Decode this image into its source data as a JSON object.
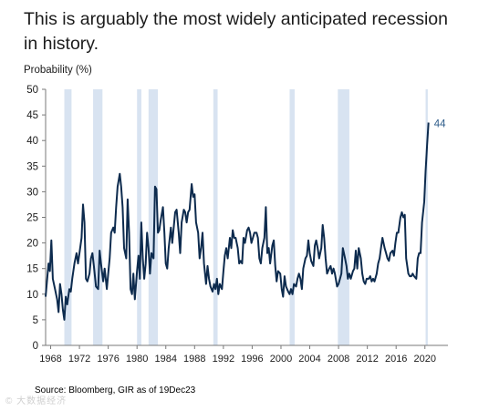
{
  "title_lines": [
    "This is arguably the most widely anticipated recession",
    "in history."
  ],
  "ylabel": "Probability (%)",
  "source": "Source: Bloomberg, GIR as of 19Dec23",
  "watermark": "© 大数据经济",
  "colors": {
    "line": "#0d2b4e",
    "recession": "#d8e3f1",
    "axis": "#7a7a7a",
    "label": "#2e5c8a",
    "text": "#1c1c1c"
  },
  "chart_data": {
    "type": "line",
    "title": "This is arguably the most widely anticipated recession in history.",
    "xlabel": "",
    "ylabel": "Probability (%)",
    "xlim": [
      1967.3,
      2023.2
    ],
    "ylim": [
      0,
      50
    ],
    "yticks": [
      0,
      5,
      10,
      15,
      20,
      25,
      30,
      35,
      40,
      45,
      50
    ],
    "xticks": [
      1968,
      1972,
      1976,
      1980,
      1984,
      1988,
      1992,
      1996,
      2000,
      2004,
      2008,
      2012,
      2016,
      2020
    ],
    "grid": false,
    "end_label": "44",
    "recessions": [
      [
        1969.9,
        1970.9
      ],
      [
        1973.9,
        1975.2
      ],
      [
        1980.0,
        1980.6
      ],
      [
        1981.6,
        1982.9
      ],
      [
        1990.6,
        1991.2
      ],
      [
        2001.2,
        2001.9
      ],
      [
        2007.9,
        2009.5
      ],
      [
        2020.1,
        2020.4
      ]
    ],
    "series": [
      {
        "values": [
          [
            1967.3,
            9.5
          ],
          [
            1967.7,
            16
          ],
          [
            1967.9,
            14.5
          ],
          [
            1968.1,
            20.5
          ],
          [
            1968.3,
            13
          ],
          [
            1968.6,
            11
          ],
          [
            1968.9,
            9
          ],
          [
            1969.1,
            6.5
          ],
          [
            1969.3,
            12
          ],
          [
            1969.5,
            10
          ],
          [
            1969.7,
            7
          ],
          [
            1969.9,
            5
          ],
          [
            1970.1,
            9.5
          ],
          [
            1970.3,
            8
          ],
          [
            1970.6,
            11
          ],
          [
            1970.8,
            10.5
          ],
          [
            1971.0,
            13
          ],
          [
            1971.3,
            16
          ],
          [
            1971.6,
            18
          ],
          [
            1971.8,
            16
          ],
          [
            1972.0,
            18
          ],
          [
            1972.3,
            21
          ],
          [
            1972.5,
            27.5
          ],
          [
            1972.7,
            24
          ],
          [
            1972.9,
            13
          ],
          [
            1973.1,
            12.5
          ],
          [
            1973.4,
            14
          ],
          [
            1973.6,
            17
          ],
          [
            1973.8,
            18
          ],
          [
            1974.0,
            15.5
          ],
          [
            1974.3,
            11.5
          ],
          [
            1974.6,
            11
          ],
          [
            1974.8,
            18.5
          ],
          [
            1975.0,
            16
          ],
          [
            1975.3,
            12.5
          ],
          [
            1975.5,
            15
          ],
          [
            1975.8,
            11
          ],
          [
            1976.0,
            14
          ],
          [
            1976.2,
            17
          ],
          [
            1976.4,
            22
          ],
          [
            1976.7,
            23
          ],
          [
            1976.9,
            22
          ],
          [
            1977.1,
            27
          ],
          [
            1977.3,
            31
          ],
          [
            1977.6,
            33.5
          ],
          [
            1977.8,
            31
          ],
          [
            1978.0,
            27
          ],
          [
            1978.2,
            19
          ],
          [
            1978.5,
            17
          ],
          [
            1978.7,
            28.5
          ],
          [
            1978.9,
            22
          ],
          [
            1979.1,
            11
          ],
          [
            1979.3,
            10
          ],
          [
            1979.5,
            14
          ],
          [
            1979.7,
            9
          ],
          [
            1980.0,
            14.5
          ],
          [
            1980.2,
            17.5
          ],
          [
            1980.4,
            13
          ],
          [
            1980.6,
            24
          ],
          [
            1980.8,
            17
          ],
          [
            1981.0,
            13
          ],
          [
            1981.2,
            16
          ],
          [
            1981.4,
            22
          ],
          [
            1981.6,
            19
          ],
          [
            1981.8,
            14
          ],
          [
            1982.0,
            18
          ],
          [
            1982.3,
            17
          ],
          [
            1982.5,
            31
          ],
          [
            1982.7,
            30.5
          ],
          [
            1982.9,
            22
          ],
          [
            1983.1,
            22.5
          ],
          [
            1983.3,
            24.5
          ],
          [
            1983.6,
            27
          ],
          [
            1983.8,
            22
          ],
          [
            1984.0,
            16
          ],
          [
            1984.2,
            15
          ],
          [
            1984.4,
            19
          ],
          [
            1984.7,
            23
          ],
          [
            1984.9,
            20
          ],
          [
            1985.1,
            23
          ],
          [
            1985.3,
            26
          ],
          [
            1985.5,
            26.5
          ],
          [
            1985.8,
            22
          ],
          [
            1986.0,
            18
          ],
          [
            1986.2,
            24
          ],
          [
            1986.5,
            26.5
          ],
          [
            1986.7,
            26
          ],
          [
            1986.9,
            24
          ],
          [
            1987.1,
            26
          ],
          [
            1987.3,
            26.5
          ],
          [
            1987.6,
            31.5
          ],
          [
            1987.8,
            29
          ],
          [
            1988.0,
            29.5
          ],
          [
            1988.2,
            24
          ],
          [
            1988.5,
            22
          ],
          [
            1988.7,
            17
          ],
          [
            1988.9,
            19
          ],
          [
            1989.1,
            22
          ],
          [
            1989.3,
            16
          ],
          [
            1989.6,
            12
          ],
          [
            1989.8,
            15.5
          ],
          [
            1990.0,
            13
          ],
          [
            1990.2,
            11.5
          ],
          [
            1990.5,
            10.5
          ],
          [
            1990.7,
            12
          ],
          [
            1990.9,
            11
          ],
          [
            1991.1,
            13
          ],
          [
            1991.3,
            10
          ],
          [
            1991.5,
            12
          ],
          [
            1991.8,
            11
          ],
          [
            1992.0,
            14.5
          ],
          [
            1992.2,
            17.5
          ],
          [
            1992.4,
            19
          ],
          [
            1992.6,
            17
          ],
          [
            1992.9,
            21
          ],
          [
            1993.1,
            19
          ],
          [
            1993.3,
            22.5
          ],
          [
            1993.5,
            21
          ],
          [
            1993.7,
            21
          ],
          [
            1994.0,
            19
          ],
          [
            1994.2,
            16
          ],
          [
            1994.4,
            16.5
          ],
          [
            1994.6,
            16
          ],
          [
            1994.8,
            21
          ],
          [
            1995.0,
            20
          ],
          [
            1995.3,
            22.5
          ],
          [
            1995.5,
            23
          ],
          [
            1995.7,
            22
          ],
          [
            1995.9,
            20
          ],
          [
            1996.1,
            21
          ],
          [
            1996.3,
            22
          ],
          [
            1996.6,
            22
          ],
          [
            1996.8,
            21
          ],
          [
            1997.0,
            17
          ],
          [
            1997.2,
            16
          ],
          [
            1997.4,
            19
          ],
          [
            1997.7,
            21
          ],
          [
            1997.9,
            27
          ],
          [
            1998.1,
            18
          ],
          [
            1998.3,
            19
          ],
          [
            1998.5,
            16
          ],
          [
            1998.8,
            19.5
          ],
          [
            1999.0,
            20.5
          ],
          [
            1999.2,
            15.5
          ],
          [
            1999.4,
            12.5
          ],
          [
            1999.6,
            14.5
          ],
          [
            1999.9,
            14
          ],
          [
            2000.1,
            11
          ],
          [
            2000.3,
            9.5
          ],
          [
            2000.5,
            13.5
          ],
          [
            2000.7,
            11.5
          ],
          [
            2001.0,
            10.5
          ],
          [
            2001.2,
            10
          ],
          [
            2001.4,
            11
          ],
          [
            2001.6,
            10
          ],
          [
            2001.8,
            12
          ],
          [
            2002.1,
            11.5
          ],
          [
            2002.3,
            13
          ],
          [
            2002.5,
            14
          ],
          [
            2002.7,
            13
          ],
          [
            2002.9,
            11
          ],
          [
            2003.1,
            15
          ],
          [
            2003.4,
            17
          ],
          [
            2003.6,
            17.5
          ],
          [
            2003.8,
            20.5
          ],
          [
            2004.0,
            18
          ],
          [
            2004.2,
            16.5
          ],
          [
            2004.5,
            15.5
          ],
          [
            2004.7,
            19.5
          ],
          [
            2004.9,
            20.5
          ],
          [
            2005.1,
            19
          ],
          [
            2005.3,
            17
          ],
          [
            2005.6,
            19
          ],
          [
            2005.8,
            23.5
          ],
          [
            2006.0,
            21
          ],
          [
            2006.2,
            17
          ],
          [
            2006.4,
            14
          ],
          [
            2006.7,
            15
          ],
          [
            2006.9,
            15.5
          ],
          [
            2007.1,
            14
          ],
          [
            2007.3,
            15
          ],
          [
            2007.5,
            14
          ],
          [
            2007.8,
            11.5
          ],
          [
            2008.0,
            12
          ],
          [
            2008.2,
            13
          ],
          [
            2008.4,
            14
          ],
          [
            2008.6,
            19
          ],
          [
            2008.9,
            17
          ],
          [
            2009.1,
            15.5
          ],
          [
            2009.3,
            13
          ],
          [
            2009.5,
            14
          ],
          [
            2009.7,
            13
          ],
          [
            2010.0,
            14.5
          ],
          [
            2010.2,
            15
          ],
          [
            2010.4,
            18.5
          ],
          [
            2010.6,
            15
          ],
          [
            2010.8,
            19
          ],
          [
            2011.1,
            17
          ],
          [
            2011.3,
            14
          ],
          [
            2011.5,
            12.5
          ],
          [
            2011.7,
            12
          ],
          [
            2011.9,
            13
          ],
          [
            2012.2,
            13
          ],
          [
            2012.4,
            13.5
          ],
          [
            2012.6,
            12.5
          ],
          [
            2012.8,
            13
          ],
          [
            2013.0,
            12.5
          ],
          [
            2013.3,
            14
          ],
          [
            2013.5,
            16
          ],
          [
            2013.7,
            17
          ],
          [
            2013.9,
            19
          ],
          [
            2014.1,
            21
          ],
          [
            2014.4,
            19
          ],
          [
            2014.6,
            18
          ],
          [
            2014.8,
            17
          ],
          [
            2015.0,
            16.5
          ],
          [
            2015.2,
            18
          ],
          [
            2015.5,
            18.5
          ],
          [
            2015.7,
            17.5
          ],
          [
            2015.9,
            20
          ],
          [
            2016.1,
            22
          ],
          [
            2016.3,
            22
          ],
          [
            2016.6,
            25
          ],
          [
            2016.8,
            26
          ],
          [
            2017.0,
            25
          ],
          [
            2017.2,
            25.5
          ],
          [
            2017.4,
            17
          ],
          [
            2017.7,
            14
          ],
          [
            2017.9,
            13.5
          ],
          [
            2018.1,
            13.5
          ],
          [
            2018.3,
            14
          ],
          [
            2018.5,
            13.5
          ],
          [
            2018.8,
            13
          ],
          [
            2019.0,
            17
          ],
          [
            2019.2,
            18
          ],
          [
            2019.4,
            18
          ],
          [
            2019.6,
            24
          ],
          [
            2019.9,
            28
          ],
          [
            2020.1,
            34
          ],
          [
            2020.3,
            39
          ],
          [
            2020.5,
            43.5
          ]
        ]
      }
    ]
  }
}
